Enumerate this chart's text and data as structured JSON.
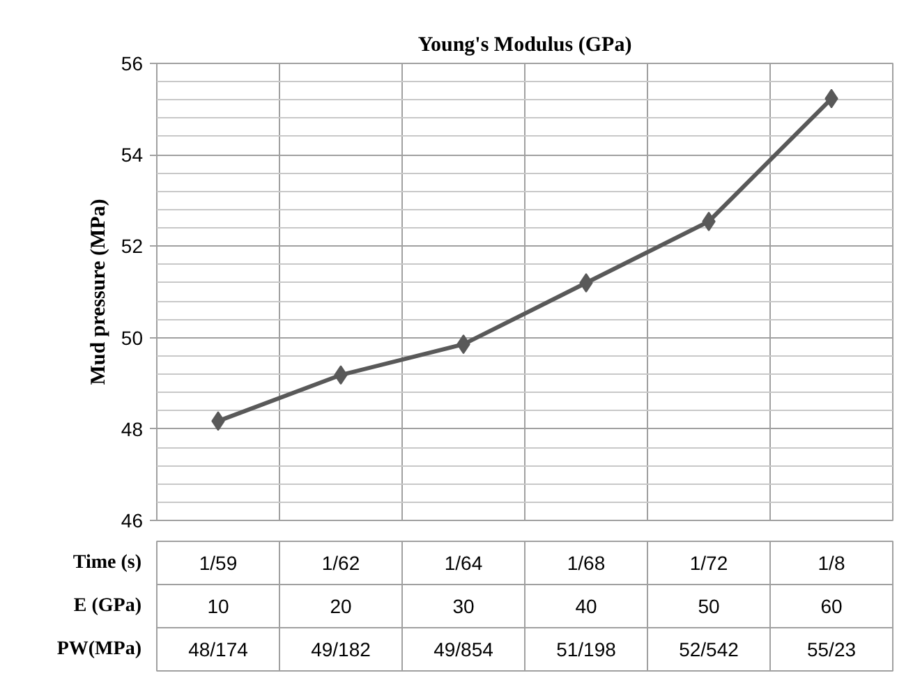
{
  "chart_data": {
    "type": "line",
    "title": "Young's Modulus (GPa)",
    "ylabel": "Mud pressure (MPa)",
    "xlabel": "E (GPa)",
    "categories": [
      "10",
      "20",
      "30",
      "40",
      "50",
      "60"
    ],
    "series": [
      {
        "color": "#595959",
        "values": [
          48.174,
          49.182,
          49.854,
          51.198,
          52.542,
          55.23
        ],
        "value_labels": [
          "48/174",
          "49/182",
          "49/854",
          "51/198",
          "52/542",
          "55/23"
        ]
      }
    ],
    "annotations": [
      "Time (s)",
      "PW(MPa)",
      "1/59",
      "1/62",
      "1/64",
      "1/68",
      "1/72",
      "1/8"
    ],
    "ylim": [
      46,
      56
    ],
    "yticks": [
      46,
      48,
      50,
      52,
      54,
      56
    ],
    "grid": true,
    "marker": "diamond",
    "line_style": "solid",
    "data_labels": true
  }
}
